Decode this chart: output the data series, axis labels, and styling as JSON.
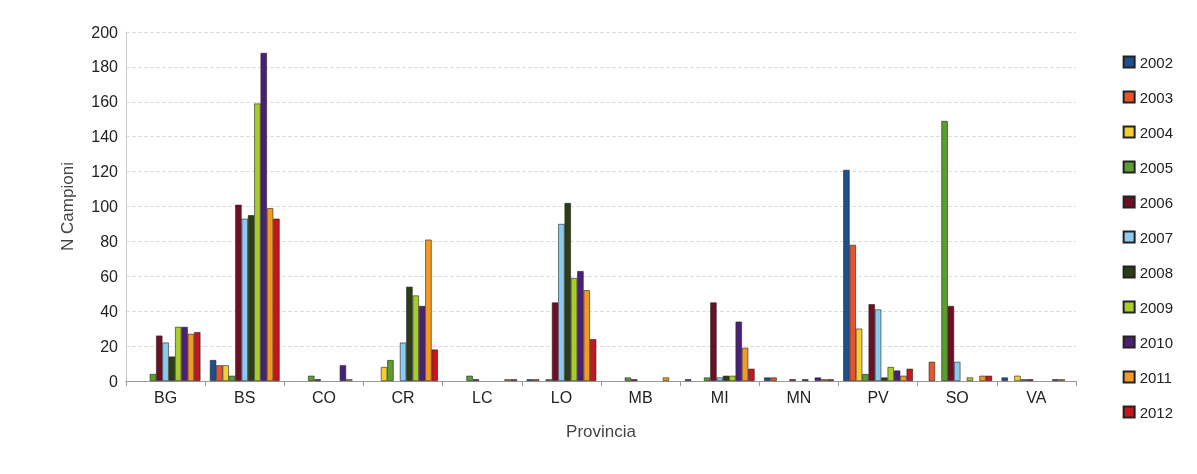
{
  "chart_data": {
    "type": "bar",
    "xlabel": "Provincia",
    "ylabel": "N Campioni",
    "categories": [
      "BG",
      "BS",
      "CO",
      "CR",
      "LC",
      "LO",
      "MB",
      "MI",
      "MN",
      "PV",
      "SO",
      "VA"
    ],
    "ylim": [
      0,
      200
    ],
    "yticks": [
      0,
      20,
      40,
      60,
      80,
      100,
      120,
      140,
      160,
      180,
      200
    ],
    "grid": "y",
    "legend": "right",
    "series": [
      {
        "name": "2002",
        "color": "#1f4e8c",
        "values": [
          0,
          12,
          0,
          0,
          0,
          1,
          0,
          1,
          2,
          121,
          0,
          2
        ]
      },
      {
        "name": "2003",
        "color": "#e8532a",
        "values": [
          0,
          9,
          0,
          0,
          0,
          1,
          0,
          0,
          2,
          78,
          11,
          0
        ]
      },
      {
        "name": "2004",
        "color": "#f2cf2e",
        "values": [
          0,
          9,
          0,
          8,
          0,
          0,
          0,
          0,
          0,
          30,
          0,
          3
        ]
      },
      {
        "name": "2005",
        "color": "#5a9e2f",
        "values": [
          4,
          3,
          3,
          12,
          3,
          1,
          2,
          2,
          0,
          4,
          149,
          1
        ]
      },
      {
        "name": "2006",
        "color": "#6e0f26",
        "values": [
          26,
          101,
          1,
          0,
          1,
          45,
          1,
          45,
          1,
          44,
          43,
          1
        ]
      },
      {
        "name": "2007",
        "color": "#8ccbf0",
        "values": [
          22,
          93,
          0,
          22,
          0,
          90,
          0,
          2,
          0,
          41,
          11,
          0
        ]
      },
      {
        "name": "2008",
        "color": "#2b3d12",
        "values": [
          14,
          95,
          0,
          54,
          0,
          102,
          0,
          3,
          1,
          2,
          0,
          0
        ]
      },
      {
        "name": "2009",
        "color": "#aacc2a",
        "values": [
          31,
          159,
          0,
          49,
          0,
          59,
          0,
          3,
          0,
          8,
          2,
          0
        ]
      },
      {
        "name": "2010",
        "color": "#4b2176",
        "values": [
          31,
          188,
          9,
          43,
          0,
          63,
          0,
          34,
          2,
          6,
          0,
          1
        ]
      },
      {
        "name": "2011",
        "color": "#f39a25",
        "values": [
          27,
          99,
          1,
          81,
          1,
          52,
          2,
          19,
          1,
          3,
          3,
          1
        ]
      },
      {
        "name": "2012",
        "color": "#c4161c",
        "values": [
          28,
          93,
          0,
          18,
          1,
          24,
          0,
          7,
          1,
          7,
          3,
          0
        ]
      }
    ]
  }
}
